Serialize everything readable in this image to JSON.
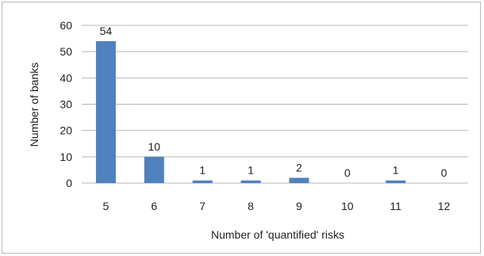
{
  "chart_data": {
    "type": "bar",
    "categories": [
      "5",
      "6",
      "7",
      "8",
      "9",
      "10",
      "11",
      "12"
    ],
    "values": [
      54,
      10,
      1,
      1,
      2,
      0,
      1,
      0
    ],
    "data_labels": [
      "54",
      "10",
      "1",
      "1",
      "2",
      "0",
      "1",
      "0"
    ],
    "xlabel": "Number of  'quantified' risks",
    "ylabel": "Number of banks",
    "ylim": [
      0,
      60
    ],
    "yticks": [
      "0",
      "10",
      "20",
      "30",
      "40",
      "50",
      "60"
    ],
    "grid": true,
    "bar_color": "#4f81bd",
    "grid_color": "#b7b7b7"
  }
}
